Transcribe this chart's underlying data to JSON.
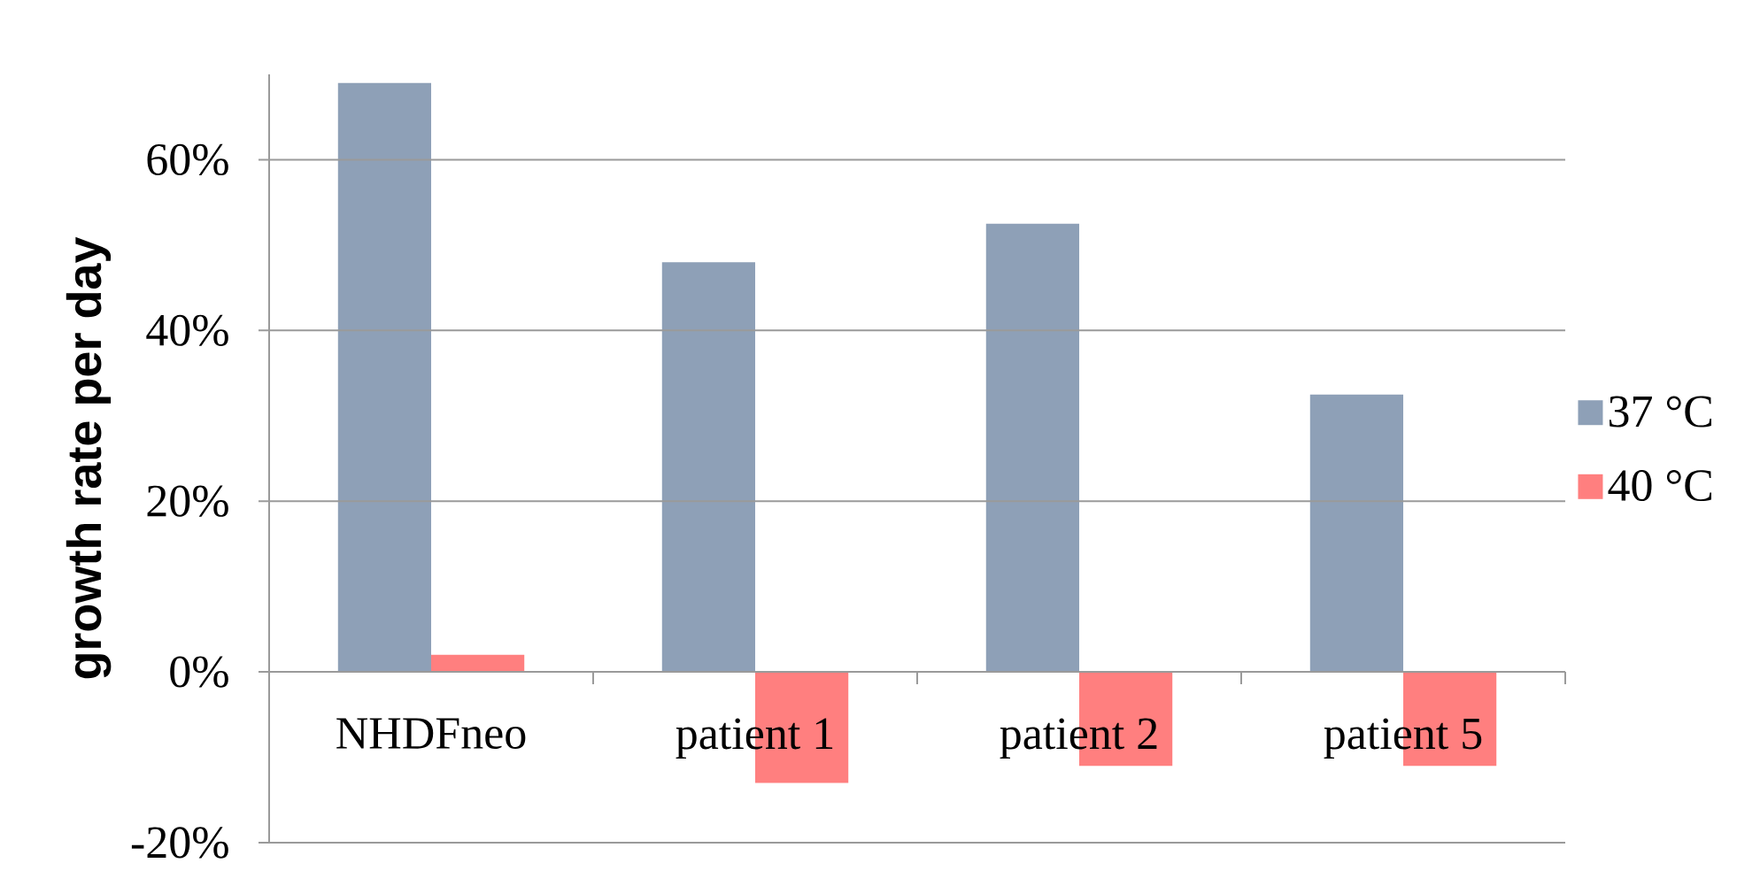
{
  "chart_data": {
    "type": "bar",
    "categories": [
      "NHDFneo",
      "patient 1",
      "patient 2",
      "patient 5"
    ],
    "series": [
      {
        "name": "37 °C",
        "color": "#8EA0B7",
        "values": [
          69,
          48,
          52.5,
          32.5
        ]
      },
      {
        "name": "40 °C",
        "color": "#FF7F7F",
        "values": [
          2,
          -13,
          -11,
          -11
        ]
      }
    ],
    "ylabel": "growth rate per day",
    "ylim": [
      -20,
      70
    ],
    "yticks": [
      {
        "value": -20,
        "label": "-20%"
      },
      {
        "value": 0,
        "label": "0%"
      },
      {
        "value": 20,
        "label": "20%"
      },
      {
        "value": 40,
        "label": "40%"
      },
      {
        "value": 60,
        "label": "60%"
      }
    ],
    "grid": "y",
    "legend": "right"
  }
}
